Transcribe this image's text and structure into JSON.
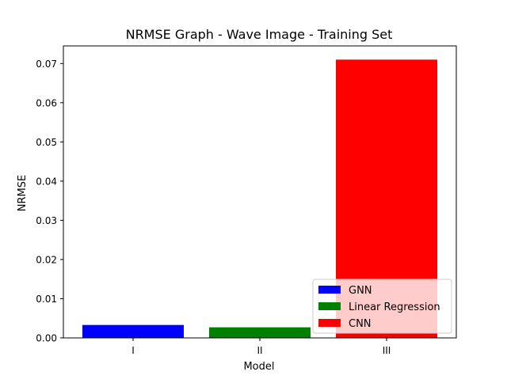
{
  "chart_data": {
    "type": "bar",
    "title": "NRMSE Graph - Wave Image - Training Set",
    "xlabel": "Model",
    "ylabel": "NRMSE",
    "categories": [
      "I",
      "II",
      "III"
    ],
    "values": [
      0.0033,
      0.0027,
      0.071
    ],
    "colors": [
      "#0000ff",
      "#008000",
      "#ff0000"
    ],
    "ylim": [
      0,
      0.0745
    ],
    "yticks": [
      0.0,
      0.01,
      0.02,
      0.03,
      0.04,
      0.05,
      0.06,
      0.07
    ],
    "ytick_labels": [
      "0.00",
      "0.01",
      "0.02",
      "0.03",
      "0.04",
      "0.05",
      "0.06",
      "0.07"
    ],
    "grid": false,
    "legend": {
      "position": "bottom-right",
      "entries": [
        {
          "label": "GNN",
          "color": "#0000ff"
        },
        {
          "label": "Linear Regression",
          "color": "#008000"
        },
        {
          "label": "CNN",
          "color": "#ff0000"
        }
      ]
    }
  }
}
